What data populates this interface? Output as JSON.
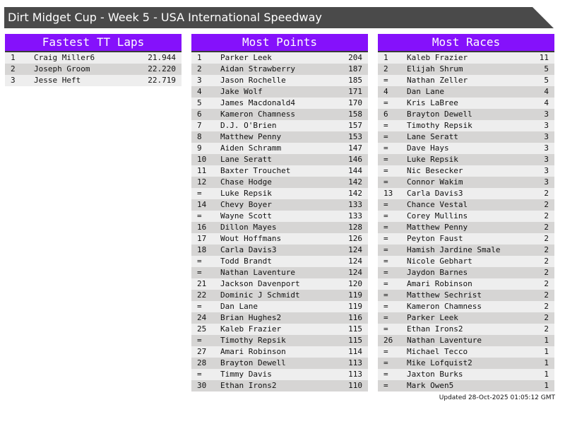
{
  "title": "Dirt Midget Cup - Week 5 - USA International Speedway",
  "colors": {
    "header": "#8511fb",
    "titlebar": "#4a4a4a",
    "row_light": "#eeeeee",
    "row_dark": "#d6d5d4"
  },
  "panels": [
    {
      "title": "Fastest TT Laps",
      "rows": [
        [
          "1",
          "Craig Miller6",
          "21.944"
        ],
        [
          "2",
          "Joseph Groom",
          "22.220"
        ],
        [
          "3",
          "Jesse Heft",
          "22.719"
        ]
      ]
    },
    {
      "title": "Most Points",
      "rows": [
        [
          "1",
          "Parker Leek",
          "204"
        ],
        [
          "2",
          "Aidan Strawberry",
          "187"
        ],
        [
          "3",
          "Jason Rochelle",
          "185"
        ],
        [
          "4",
          "Jake Wolf",
          "171"
        ],
        [
          "5",
          "James Macdonald4",
          "170"
        ],
        [
          "6",
          "Kameron Chamness",
          "158"
        ],
        [
          "7",
          "D.J. O'Brien",
          "157"
        ],
        [
          "8",
          "Matthew Penny",
          "153"
        ],
        [
          "9",
          "Aiden Schramm",
          "147"
        ],
        [
          "10",
          "Lane Seratt",
          "146"
        ],
        [
          "11",
          "Baxter Trouchet",
          "144"
        ],
        [
          "12",
          "Chase Hodge",
          "142"
        ],
        [
          "=",
          "Luke Repsik",
          "142"
        ],
        [
          "14",
          "Chevy Boyer",
          "133"
        ],
        [
          "=",
          "Wayne Scott",
          "133"
        ],
        [
          "16",
          "Dillon Mayes",
          "128"
        ],
        [
          "17",
          "Wout Hoffmans",
          "126"
        ],
        [
          "18",
          "Carla Davis3",
          "124"
        ],
        [
          "=",
          "Todd Brandt",
          "124"
        ],
        [
          "=",
          "Nathan Laventure",
          "124"
        ],
        [
          "21",
          "Jackson Davenport",
          "120"
        ],
        [
          "22",
          "Dominic J Schmidt",
          "119"
        ],
        [
          "=",
          "Dan Lane",
          "119"
        ],
        [
          "24",
          "Brian Hughes2",
          "116"
        ],
        [
          "25",
          "Kaleb Frazier",
          "115"
        ],
        [
          "=",
          "Timothy Repsik",
          "115"
        ],
        [
          "27",
          "Amari Robinson",
          "114"
        ],
        [
          "28",
          "Brayton Dewell",
          "113"
        ],
        [
          "=",
          "Timmy Davis",
          "113"
        ],
        [
          "30",
          "Ethan Irons2",
          "110"
        ]
      ]
    },
    {
      "title": "Most Races",
      "rows": [
        [
          "1",
          "Kaleb Frazier",
          "11"
        ],
        [
          "2",
          "Elijah Shrum",
          "5"
        ],
        [
          "=",
          "Nathan Zeller",
          "5"
        ],
        [
          "4",
          "Dan Lane",
          "4"
        ],
        [
          "=",
          "Kris LaBree",
          "4"
        ],
        [
          "6",
          "Brayton Dewell",
          "3"
        ],
        [
          "=",
          "Timothy Repsik",
          "3"
        ],
        [
          "=",
          "Lane Seratt",
          "3"
        ],
        [
          "=",
          "Dave Hays",
          "3"
        ],
        [
          "=",
          "Luke Repsik",
          "3"
        ],
        [
          "=",
          "Nic Besecker",
          "3"
        ],
        [
          "=",
          "Connor Wakim",
          "3"
        ],
        [
          "13",
          "Carla Davis3",
          "2"
        ],
        [
          "=",
          "Chance Vestal",
          "2"
        ],
        [
          "=",
          "Corey Mullins",
          "2"
        ],
        [
          "=",
          "Matthew Penny",
          "2"
        ],
        [
          "=",
          "Peyton Faust",
          "2"
        ],
        [
          "=",
          "Hamish Jardine Smale",
          "2"
        ],
        [
          "=",
          "Nicole Gebhart",
          "2"
        ],
        [
          "=",
          "Jaydon Barnes",
          "2"
        ],
        [
          "=",
          "Amari Robinson",
          "2"
        ],
        [
          "=",
          "Matthew Sechrist",
          "2"
        ],
        [
          "=",
          "Kameron Chamness",
          "2"
        ],
        [
          "=",
          "Parker Leek",
          "2"
        ],
        [
          "=",
          "Ethan Irons2",
          "2"
        ],
        [
          "26",
          "Nathan Laventure",
          "1"
        ],
        [
          "=",
          "Michael Tecco",
          "1"
        ],
        [
          "=",
          "Mike Lofquist2",
          "1"
        ],
        [
          "=",
          "Jaxton Burks",
          "1"
        ],
        [
          "=",
          "Mark Owen5",
          "1"
        ]
      ]
    }
  ],
  "footer": "Updated 28-Oct-2025 01:05:12 GMT"
}
